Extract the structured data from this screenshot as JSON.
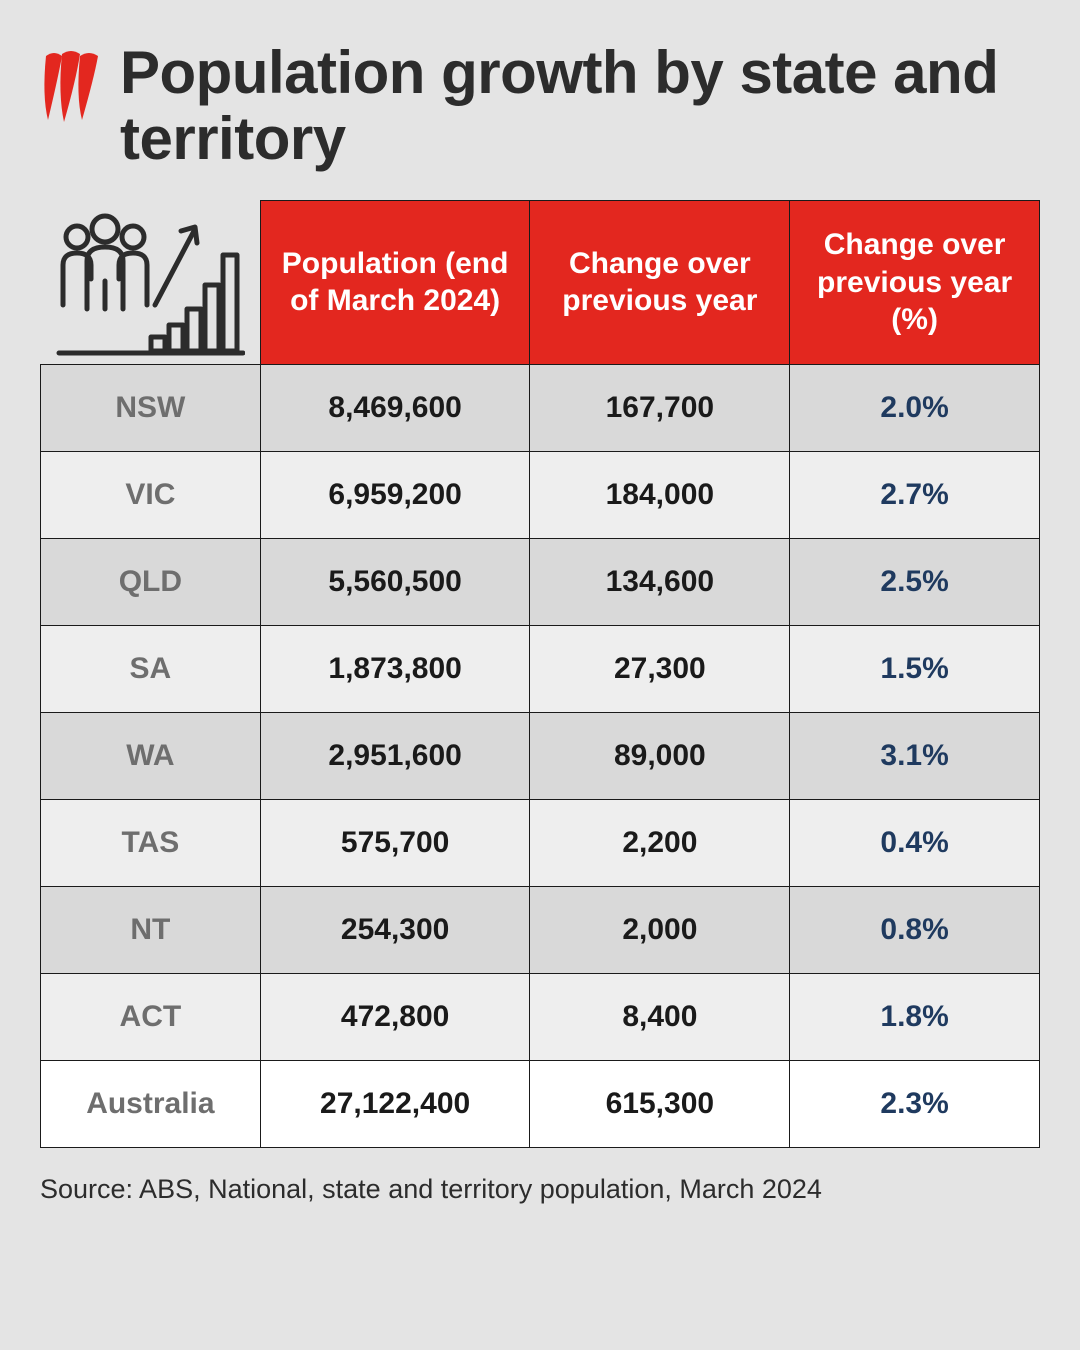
{
  "title": "Population growth by state and territory",
  "table": {
    "type": "table",
    "header_background": "#e3271f",
    "header_text_color": "#ffffff",
    "row_stripe_colors": [
      "#d9d9d9",
      "#eeeeee"
    ],
    "total_row_background": "#ffffff",
    "border_color": "#1a1a1a",
    "state_text_color": "#6e6e6e",
    "value_text_color": "#1a1a1a",
    "percent_text_color": "#1f3a5f",
    "header_fontsize": 30,
    "cell_fontsize": 30,
    "columns": [
      "",
      "Population (end of March 2024)",
      "Change over previous year",
      "Change over previous year (%)"
    ],
    "rows": [
      {
        "state": "NSW",
        "population": "8,469,600",
        "change": "167,700",
        "pct": "2.0%"
      },
      {
        "state": "VIC",
        "population": "6,959,200",
        "change": "184,000",
        "pct": "2.7%"
      },
      {
        "state": "QLD",
        "population": "5,560,500",
        "change": "134,600",
        "pct": "2.5%"
      },
      {
        "state": "SA",
        "population": "1,873,800",
        "change": "27,300",
        "pct": "1.5%"
      },
      {
        "state": "WA",
        "population": "2,951,600",
        "change": "89,000",
        "pct": "3.1%"
      },
      {
        "state": "TAS",
        "population": "575,700",
        "change": "2,200",
        "pct": "0.4%"
      },
      {
        "state": "NT",
        "population": "254,300",
        "change": "2,000",
        "pct": "0.8%"
      },
      {
        "state": "ACT",
        "population": "472,800",
        "change": "8,400",
        "pct": "1.8%"
      }
    ],
    "total": {
      "state": "Australia",
      "population": "27,122,400",
      "change": "615,300",
      "pct": "2.3%"
    }
  },
  "source": "Source: ABS, National, state and territory population, March 2024",
  "logo_color": "#e3271f",
  "icon_color": "#2c2c2c",
  "background_color": "#e4e4e4"
}
